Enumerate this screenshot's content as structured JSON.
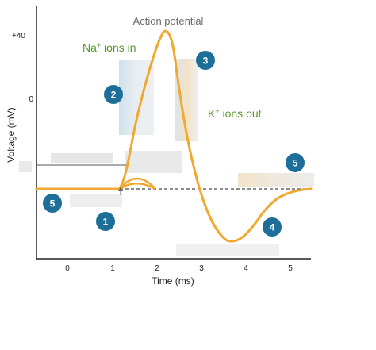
{
  "title": "Action potential",
  "labels": {
    "na_in": "Na",
    "na_sup": "+",
    "na_rest": " ions in",
    "k_out": "K",
    "k_sup": "+",
    "k_rest": " ions out"
  },
  "axes": {
    "xlabel": "Time (ms)",
    "ylabel": "Voltage (mV)",
    "x_ticks": [
      "0",
      "1",
      "2",
      "3",
      "4",
      "5"
    ],
    "y_ticks": [
      "+40",
      "0"
    ]
  },
  "badges": [
    "1",
    "2",
    "3",
    "4",
    "5",
    "5"
  ],
  "colors": {
    "curve": "#f0a830",
    "badge": "#1d6f9a",
    "green_text": "#5a9a2e",
    "threshold": "#666666"
  }
}
